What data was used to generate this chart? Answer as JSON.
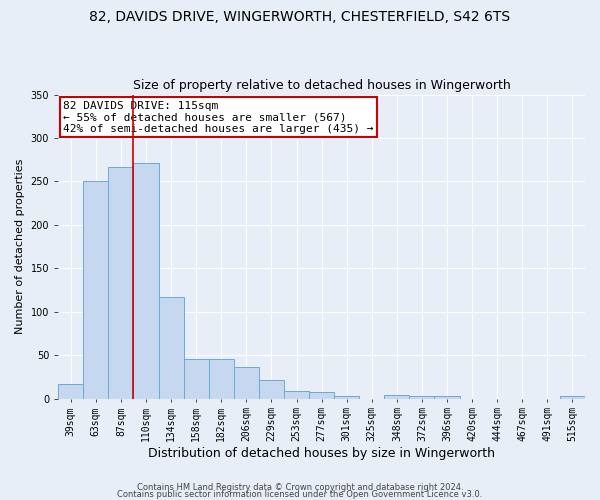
{
  "title1": "82, DAVIDS DRIVE, WINGERWORTH, CHESTERFIELD, S42 6TS",
  "title2": "Size of property relative to detached houses in Wingerworth",
  "xlabel": "Distribution of detached houses by size in Wingerworth",
  "ylabel": "Number of detached properties",
  "categories": [
    "39sqm",
    "63sqm",
    "87sqm",
    "110sqm",
    "134sqm",
    "158sqm",
    "182sqm",
    "206sqm",
    "229sqm",
    "253sqm",
    "277sqm",
    "301sqm",
    "325sqm",
    "348sqm",
    "372sqm",
    "396sqm",
    "420sqm",
    "444sqm",
    "467sqm",
    "491sqm",
    "515sqm"
  ],
  "values": [
    17,
    250,
    267,
    271,
    117,
    46,
    46,
    36,
    21,
    9,
    8,
    3,
    0,
    4,
    3,
    3,
    0,
    0,
    0,
    0,
    3
  ],
  "bar_color": "#c5d8f0",
  "bar_edge_color": "#6aaad4",
  "background_color": "#e8eef8",
  "grid_color": "#ffffff",
  "annotation_text": "82 DAVIDS DRIVE: 115sqm\n← 55% of detached houses are smaller (567)\n42% of semi-detached houses are larger (435) →",
  "annotation_box_color": "#ffffff",
  "annotation_box_edge_color": "#cc0000",
  "vline_index": 3,
  "vline_color": "#cc0000",
  "ylim_max": 350,
  "yticks": [
    0,
    50,
    100,
    150,
    200,
    250,
    300,
    350
  ],
  "footnote1": "Contains HM Land Registry data © Crown copyright and database right 2024.",
  "footnote2": "Contains public sector information licensed under the Open Government Licence v3.0.",
  "title_fontsize": 10,
  "subtitle_fontsize": 9,
  "xlabel_fontsize": 9,
  "ylabel_fontsize": 8,
  "tick_fontsize": 7,
  "annotation_fontsize": 8,
  "footnote_fontsize": 6
}
